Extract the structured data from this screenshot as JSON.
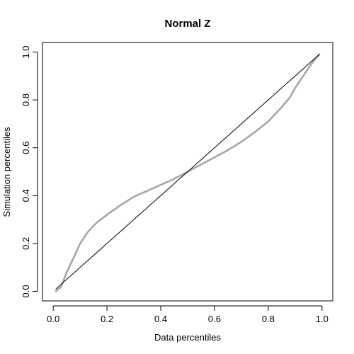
{
  "chart_data": {
    "type": "line",
    "title": "Normal Z",
    "xlabel": "Data percentiles",
    "ylabel": "Simulation percentiles",
    "xlim": [
      -0.04,
      1.04
    ],
    "ylim": [
      -0.04,
      1.04
    ],
    "xticks": [
      0.0,
      0.2,
      0.4,
      0.6,
      0.8,
      1.0
    ],
    "xtick_labels": [
      "0.0",
      "0.2",
      "0.4",
      "0.6",
      "0.8",
      "1.0"
    ],
    "yticks": [
      0.0,
      0.2,
      0.4,
      0.6,
      0.8,
      1.0
    ],
    "ytick_labels": [
      "0.0",
      "0.2",
      "0.4",
      "0.6",
      "0.8",
      "1.0"
    ],
    "grid": false,
    "series": [
      {
        "color": "#a6a6a6",
        "style": "thick",
        "x": [
          0.01,
          0.03,
          0.05,
          0.08,
          0.1,
          0.13,
          0.16,
          0.2,
          0.25,
          0.3,
          0.35,
          0.4,
          0.45,
          0.5,
          0.55,
          0.6,
          0.65,
          0.7,
          0.75,
          0.8,
          0.85,
          0.88,
          0.9,
          0.93,
          0.96,
          0.99
        ],
        "y": [
          0.0,
          0.02,
          0.08,
          0.15,
          0.2,
          0.25,
          0.285,
          0.32,
          0.36,
          0.395,
          0.42,
          0.445,
          0.47,
          0.5,
          0.53,
          0.56,
          0.59,
          0.625,
          0.665,
          0.71,
          0.77,
          0.81,
          0.85,
          0.9,
          0.95,
          0.99
        ]
      },
      {
        "color": "#000000",
        "style": "thin",
        "x": [
          0.01,
          0.99
        ],
        "y": [
          0.01,
          0.99
        ]
      }
    ]
  }
}
